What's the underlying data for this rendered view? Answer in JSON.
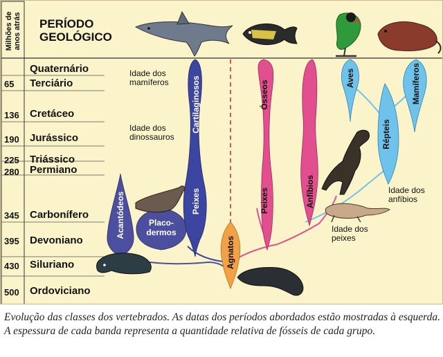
{
  "header": {
    "axis_label_line1": "Milhões de",
    "axis_label_line2": "anos atrás",
    "title_line1": "PERÍODO",
    "title_line2": "GEOLÓGICO"
  },
  "periods": [
    {
      "date": "",
      "name": "Quaternário"
    },
    {
      "date": "65",
      "name": "Terciário"
    },
    {
      "date": "136",
      "name": "Cretáceo"
    },
    {
      "date": "190",
      "name": "Jurássico"
    },
    {
      "date": "225",
      "name": "Triássico"
    },
    {
      "date": "280",
      "name": "Permiano"
    },
    {
      "date": "345",
      "name": "Carbonífero"
    },
    {
      "date": "395",
      "name": "Devoniano"
    },
    {
      "date": "430",
      "name": "Siluriano"
    },
    {
      "date": "500",
      "name": "Ordoviciano"
    }
  ],
  "eras": {
    "mamiferos": "Idade dos mamíferos",
    "dinossauros": "Idade dos dinossauros",
    "anfibios": "Idade dos anfíbios",
    "peixes": "Idade dos peixes"
  },
  "groups": {
    "acantodeos": "Acantódeos",
    "placodermos": "Placo-dermos",
    "cartilaginosos": "Cartilaginosos",
    "peixes_cart": "Peixes",
    "agnatos": "Agnatos",
    "osseos": "Ósseos",
    "peixes_oss": "Peixes",
    "anfibios": "Anfíbios",
    "aves": "Aves",
    "repteis": "Répteis",
    "mamiferos": "Mamíferos"
  },
  "colors": {
    "background": "#fbf3c9",
    "acantodeos": "#4b4f9e",
    "placodermos": "#4b4f9e",
    "cartilaginosos": "#3c46a0",
    "agnatos": "#f2a146",
    "osseos": "#e24f8e",
    "anfibios": "#e24f8e",
    "aves": "#6fc2ea",
    "repteis": "#6fc2ea",
    "mamiferos": "#6fc2ea"
  },
  "icons": [
    "shark-icon",
    "triggerfish-icon",
    "parrot-icon",
    "rodent-icon",
    "dinosaur-icon",
    "salamander-icon",
    "lungfish-icon",
    "armored-fish-icon",
    "eurypterid-icon"
  ],
  "caption": "Evolução das classes dos vertebrados. As datas dos períodos abordados estão mostradas à esquerda. A espessura de cada banda representa a quantidade relativa de fósseis de cada grupo."
}
